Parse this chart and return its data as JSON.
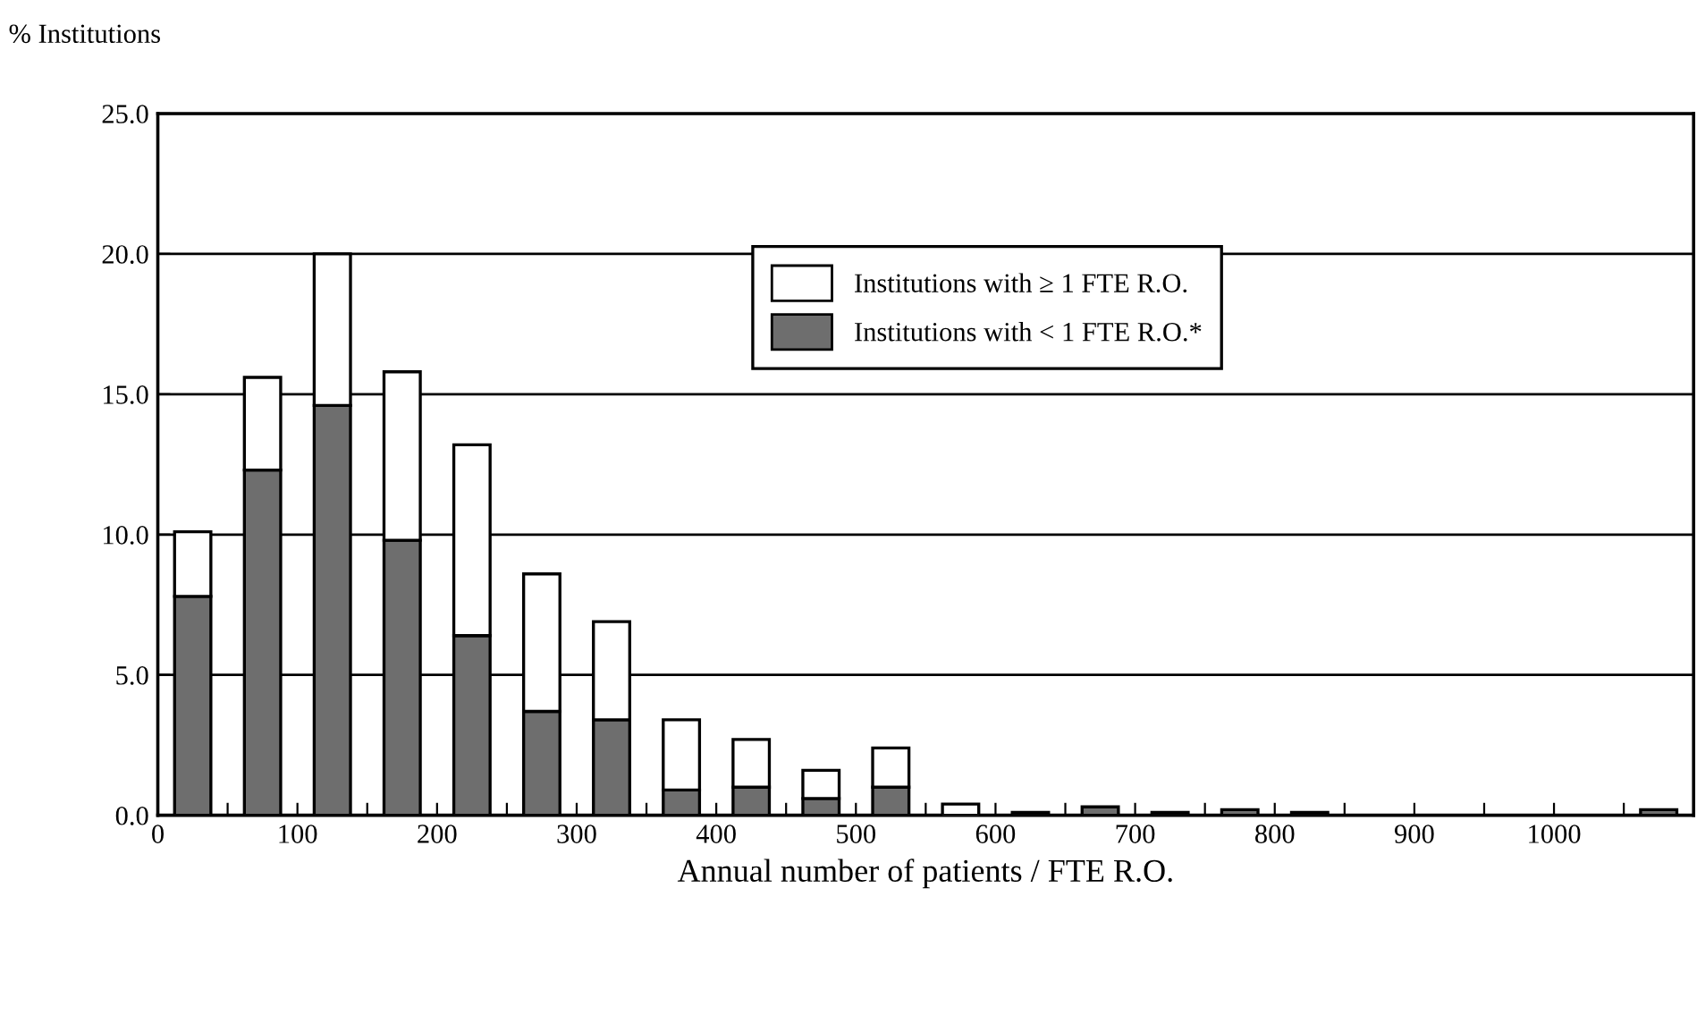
{
  "chart_data": {
    "type": "bar",
    "stacked": true,
    "xlabel": "Annual number of patients / FTE R.O.",
    "ylabel": "% Institutions",
    "x": [
      25,
      75,
      125,
      175,
      225,
      275,
      325,
      375,
      425,
      475,
      525,
      575,
      625,
      675,
      725,
      775,
      825,
      875,
      925,
      975,
      1025,
      1075
    ],
    "series": [
      {
        "name": "Institutions with < 1 FTE R.O.*",
        "color": "#6e6e6e",
        "values": [
          7.8,
          12.3,
          14.6,
          9.8,
          6.4,
          3.7,
          3.4,
          0.9,
          1.0,
          0.6,
          1.0,
          0,
          0.1,
          0.3,
          0.1,
          0.2,
          0.1,
          0,
          0,
          0,
          0,
          0.2
        ]
      },
      {
        "name": "Institutions with ≥ 1 FTE R.O.",
        "color": "#ffffff",
        "values": [
          2.3,
          3.3,
          5.4,
          6.0,
          6.8,
          4.9,
          3.5,
          2.5,
          1.7,
          1.0,
          1.4,
          0.4,
          0,
          0,
          0,
          0,
          0,
          0,
          0,
          0,
          0,
          0
        ]
      }
    ],
    "xlim": [
      0,
      1100
    ],
    "xticks": [
      0,
      {
        "value": 50,
        "label": null
      },
      100,
      {
        "value": 150,
        "label": null
      },
      200,
      {
        "value": 250,
        "label": null
      },
      300,
      {
        "value": 350,
        "label": null
      },
      400,
      {
        "value": 450,
        "label": null
      },
      500,
      {
        "value": 550,
        "label": null
      },
      600,
      {
        "value": 650,
        "label": null
      },
      700,
      {
        "value": 750,
        "label": null
      },
      800,
      {
        "value": 850,
        "label": null
      },
      900,
      {
        "value": 950,
        "label": null
      },
      1000,
      {
        "value": 1050,
        "label": null
      }
    ],
    "ylim": [
      0,
      25
    ],
    "yticks": [
      {
        "value": 0,
        "label": "0.0"
      },
      {
        "value": 5,
        "label": "5.0"
      },
      {
        "value": 10,
        "label": "10.0"
      },
      {
        "value": 15,
        "label": "15.0"
      },
      {
        "value": 20,
        "label": "20.0"
      },
      {
        "value": 25,
        "label": "25.0"
      }
    ],
    "grid": "y",
    "legend": "top"
  }
}
